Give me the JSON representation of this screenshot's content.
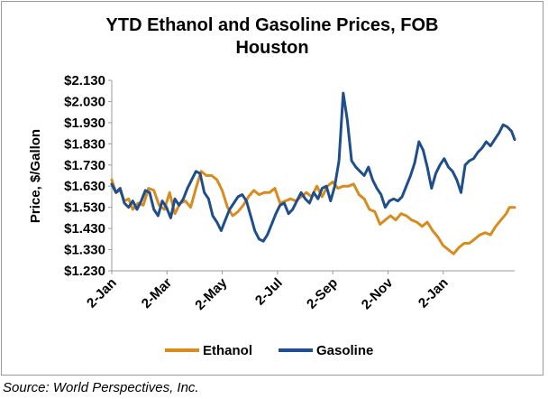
{
  "chart_data": {
    "type": "line",
    "title": "YTD Ethanol and Gasoline Prices, FOB Houston",
    "title_lines": [
      "YTD Ethanol and Gasoline Prices, FOB",
      "Houston"
    ],
    "ylabel": "Price, $/Gallon",
    "xlabel": "",
    "ylim": [
      1.23,
      2.13
    ],
    "y_ticks": [
      "$2.130",
      "$2.030",
      "$1.930",
      "$1.830",
      "$1.730",
      "$1.630",
      "$1.530",
      "$1.430",
      "$1.330",
      "$1.230"
    ],
    "x_ticks": [
      "2-Jan",
      "2-Mar",
      "2-May",
      "2-Jul",
      "2-Sep",
      "2-Nov",
      "2-Jan"
    ],
    "x_range": [
      0,
      383
    ],
    "grid": false,
    "legend_position": "bottom",
    "series": [
      {
        "name": "Ethanol",
        "color": "#D98C1E",
        "x": [
          0,
          4,
          8,
          12,
          16,
          20,
          25,
          30,
          35,
          40,
          45,
          50,
          55,
          60,
          65,
          70,
          75,
          80,
          85,
          90,
          95,
          100,
          105,
          110,
          115,
          120,
          125,
          130,
          135,
          140,
          145,
          150,
          155,
          160,
          165,
          170,
          175,
          180,
          185,
          190,
          195,
          200,
          205,
          210,
          215,
          220,
          225,
          230,
          235,
          240,
          245,
          250,
          255,
          260,
          265,
          270,
          275,
          280,
          285,
          290,
          295,
          300,
          305,
          310,
          315,
          320,
          325,
          330,
          335,
          340,
          345,
          350,
          355,
          360,
          365,
          370,
          375,
          378,
          383
        ],
        "values": [
          1.66,
          1.6,
          1.61,
          1.56,
          1.57,
          1.52,
          1.55,
          1.54,
          1.62,
          1.61,
          1.54,
          1.52,
          1.6,
          1.5,
          1.55,
          1.56,
          1.53,
          1.62,
          1.7,
          1.68,
          1.68,
          1.66,
          1.61,
          1.53,
          1.49,
          1.51,
          1.54,
          1.58,
          1.61,
          1.59,
          1.6,
          1.6,
          1.62,
          1.55,
          1.56,
          1.57,
          1.56,
          1.58,
          1.6,
          1.58,
          1.63,
          1.58,
          1.63,
          1.65,
          1.62,
          1.63,
          1.63,
          1.64,
          1.59,
          1.57,
          1.52,
          1.51,
          1.45,
          1.47,
          1.49,
          1.47,
          1.5,
          1.49,
          1.47,
          1.46,
          1.44,
          1.46,
          1.42,
          1.39,
          1.35,
          1.33,
          1.31,
          1.34,
          1.36,
          1.36,
          1.38,
          1.4,
          1.41,
          1.4,
          1.44,
          1.47,
          1.5,
          1.53,
          1.53
        ]
      },
      {
        "name": "Gasoline",
        "color": "#1F4E8C",
        "x": [
          0,
          4,
          8,
          12,
          16,
          20,
          24,
          28,
          32,
          36,
          40,
          44,
          48,
          52,
          56,
          60,
          64,
          68,
          72,
          76,
          80,
          84,
          88,
          92,
          96,
          100,
          104,
          108,
          112,
          116,
          120,
          124,
          128,
          132,
          136,
          140,
          144,
          148,
          152,
          156,
          160,
          164,
          168,
          172,
          176,
          180,
          184,
          188,
          192,
          196,
          200,
          204,
          208,
          212,
          216,
          220,
          224,
          228,
          232,
          236,
          240,
          244,
          248,
          252,
          256,
          260,
          264,
          268,
          272,
          276,
          280,
          284,
          288,
          292,
          296,
          300,
          304,
          308,
          312,
          316,
          320,
          324,
          328,
          332,
          336,
          340,
          344,
          348,
          352,
          356,
          360,
          364,
          368,
          372,
          376,
          380,
          383
        ],
        "values": [
          1.64,
          1.6,
          1.62,
          1.55,
          1.53,
          1.56,
          1.52,
          1.56,
          1.61,
          1.6,
          1.52,
          1.49,
          1.56,
          1.53,
          1.48,
          1.57,
          1.54,
          1.57,
          1.62,
          1.66,
          1.7,
          1.69,
          1.6,
          1.57,
          1.49,
          1.46,
          1.42,
          1.47,
          1.52,
          1.55,
          1.58,
          1.59,
          1.56,
          1.49,
          1.42,
          1.38,
          1.37,
          1.4,
          1.45,
          1.5,
          1.54,
          1.55,
          1.5,
          1.52,
          1.56,
          1.6,
          1.57,
          1.55,
          1.6,
          1.57,
          1.62,
          1.63,
          1.56,
          1.63,
          1.75,
          2.07,
          1.94,
          1.75,
          1.72,
          1.7,
          1.68,
          1.72,
          1.66,
          1.62,
          1.59,
          1.53,
          1.56,
          1.57,
          1.56,
          1.58,
          1.63,
          1.68,
          1.74,
          1.84,
          1.8,
          1.72,
          1.62,
          1.69,
          1.73,
          1.76,
          1.72,
          1.7,
          1.66,
          1.6,
          1.73,
          1.75,
          1.76,
          1.79,
          1.81,
          1.84,
          1.82,
          1.85,
          1.88,
          1.92,
          1.91,
          1.89,
          1.85
        ]
      }
    ]
  },
  "source_note": "Source: World Perspectives, Inc."
}
